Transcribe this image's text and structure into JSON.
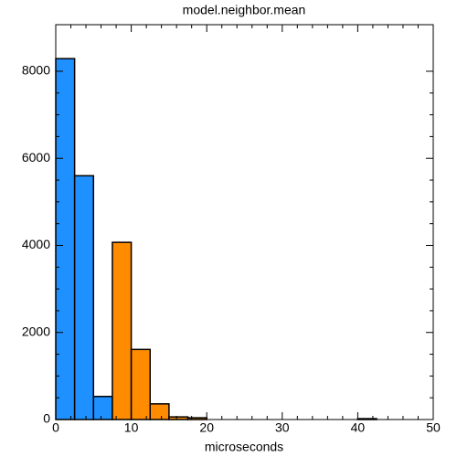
{
  "chart_data": {
    "type": "histogram",
    "title": "model.neighbor.mean",
    "x_label": "microseconds",
    "bins": [
      0,
      2.5,
      5,
      7.5,
      10,
      12.5,
      15,
      17.5,
      20,
      22.5,
      25,
      27.5,
      30,
      32.5,
      35,
      37.5,
      40,
      42.5,
      45,
      47.5,
      50
    ],
    "values": [
      8290,
      5600,
      530,
      4070,
      1610,
      360,
      60,
      40,
      0,
      0,
      0,
      0,
      0,
      0,
      0,
      0,
      20,
      0,
      0,
      0
    ],
    "colors": [
      "#1e90ff",
      "#1e90ff",
      "#1e90ff",
      "#ff8c00",
      "#ff8c00",
      "#ff8c00",
      "#ff8c00",
      "#ff8c00",
      "#ff8c00",
      "#ff8c00",
      "#ff8c00",
      "#ff8c00",
      "#ff8c00",
      "#ff8c00",
      "#ff8c00",
      "#ff8c00",
      "#ff8c00",
      "#ff8c00",
      "#ff8c00",
      "#ff8c00"
    ],
    "xlim": [
      0,
      50
    ],
    "xticks": [
      0,
      10,
      20,
      30,
      40,
      50
    ],
    "ylim": [
      0,
      9070
    ],
    "yticks": [
      0,
      2000,
      4000,
      6000,
      8000
    ]
  }
}
